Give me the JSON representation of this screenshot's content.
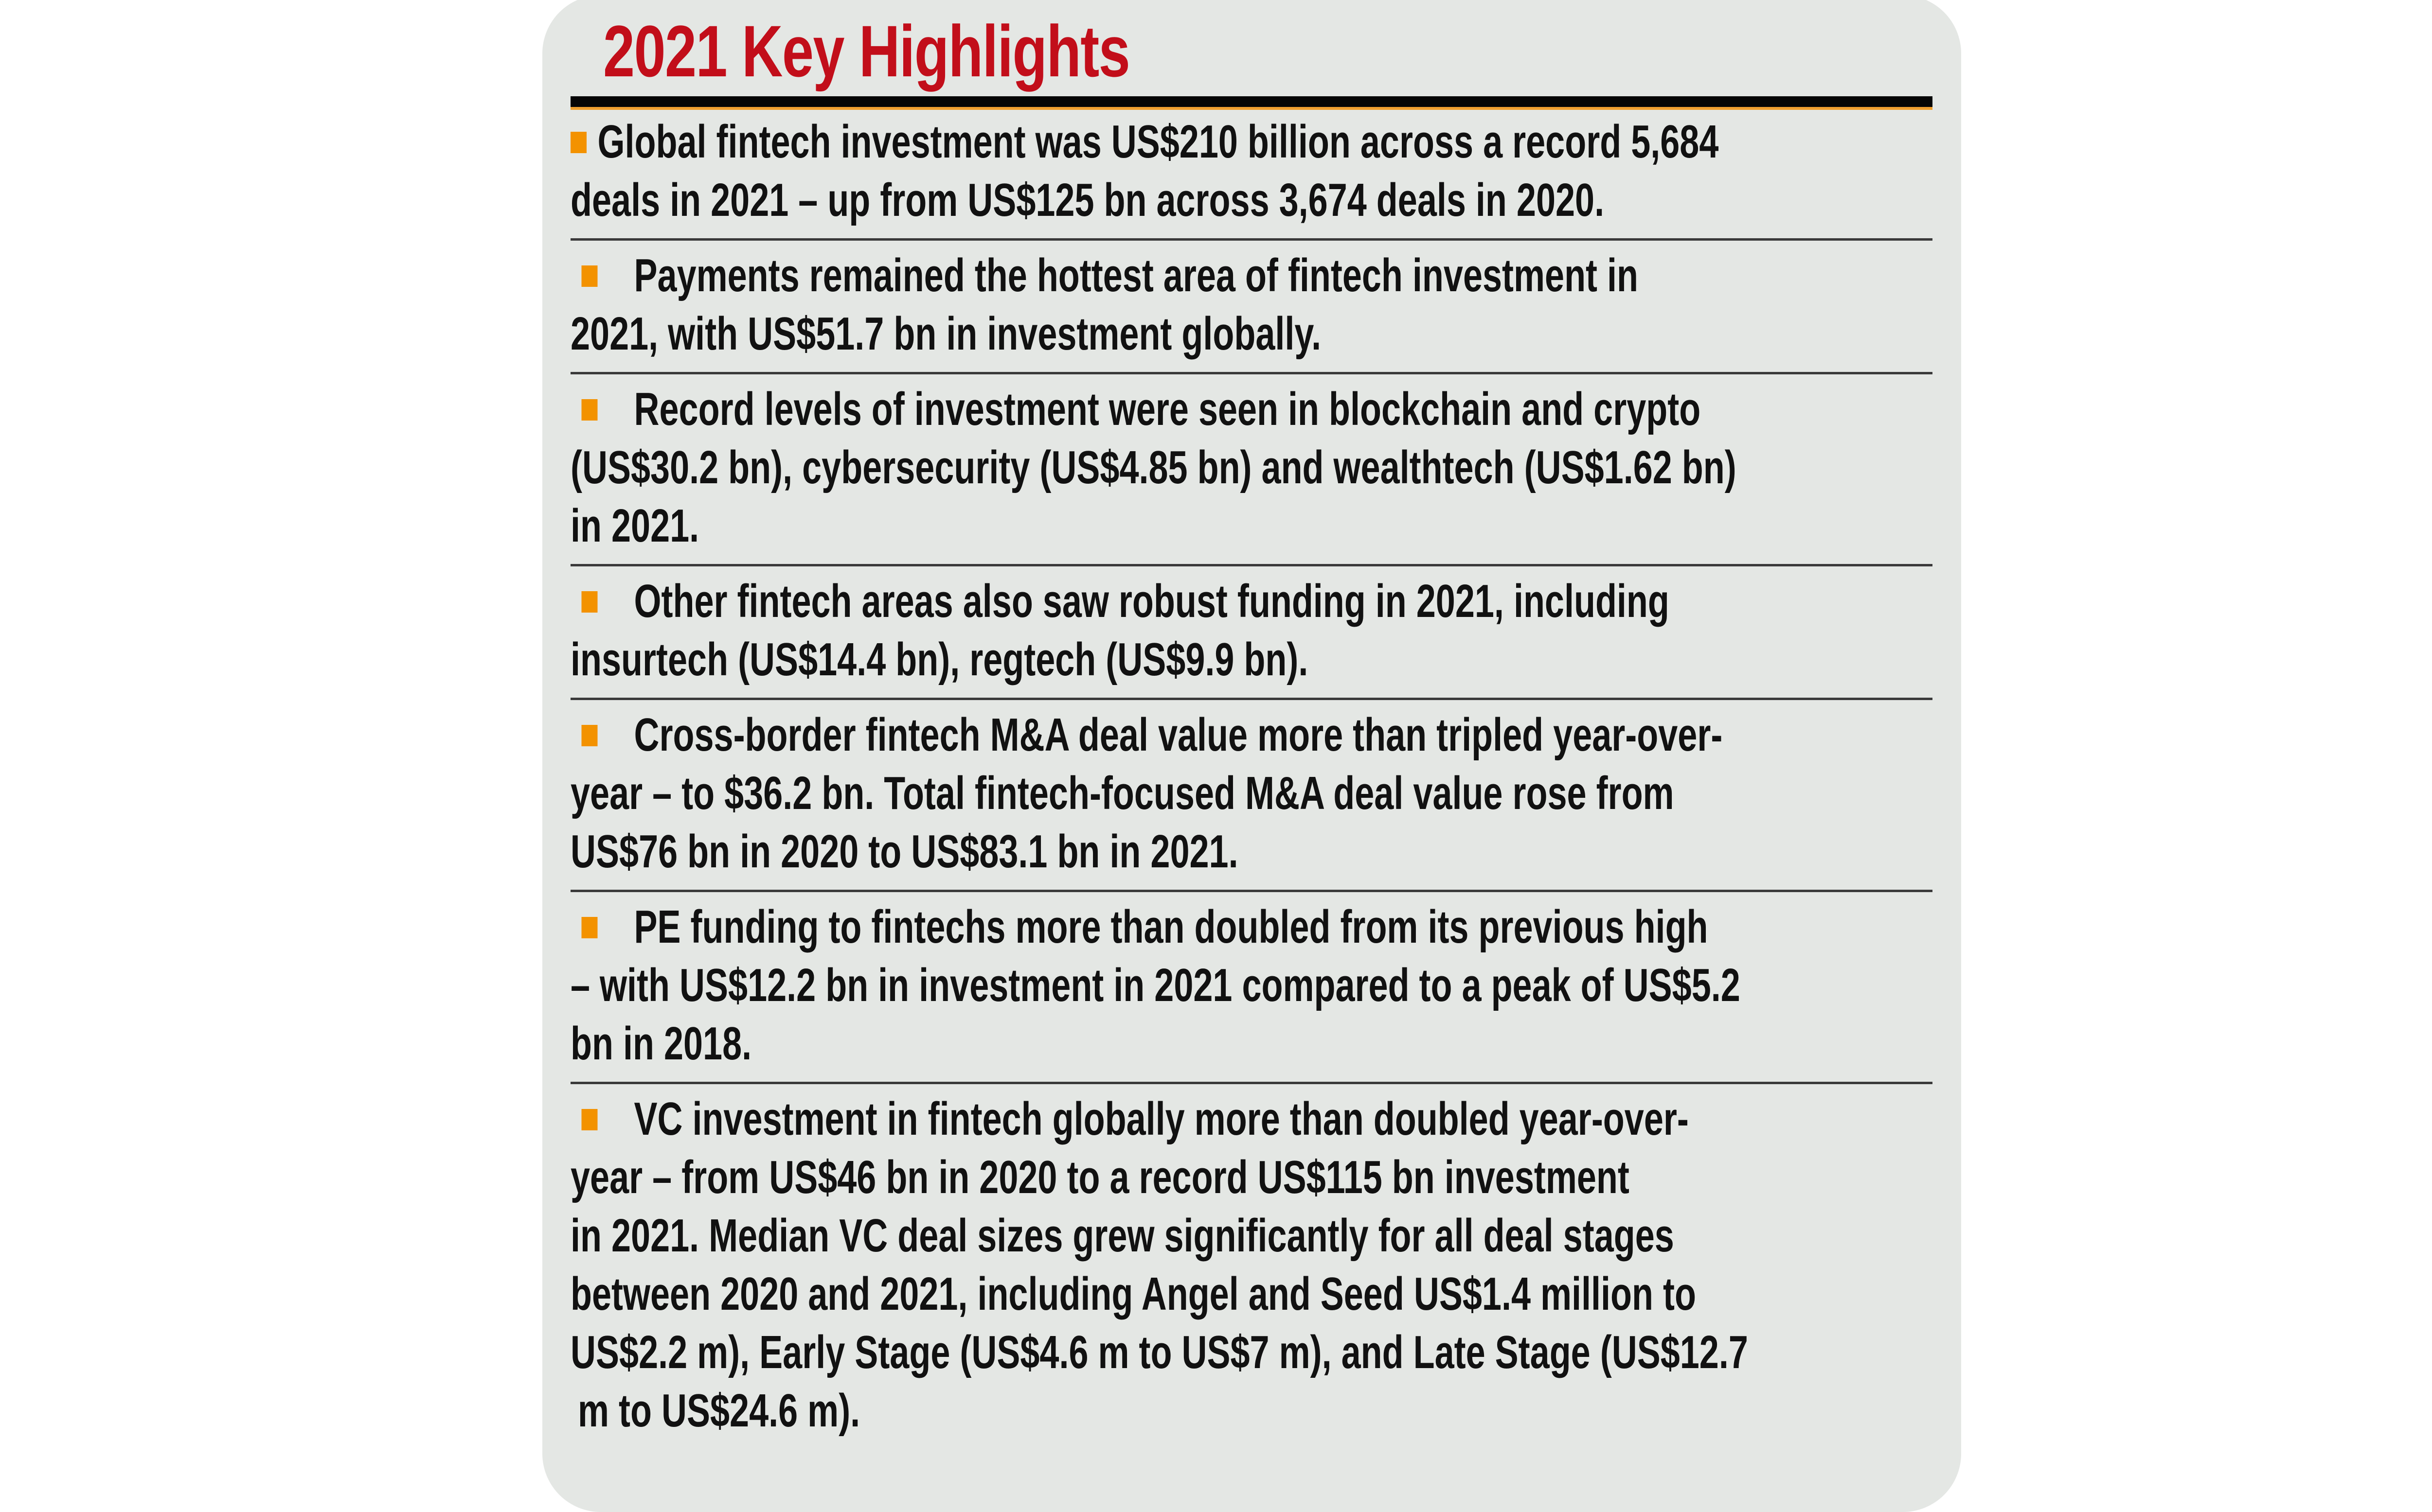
{
  "title": "2021 Key Highlights",
  "colors": {
    "title": "#c20e1a",
    "bullet": "#f39200",
    "panel": "#e4e7e4"
  },
  "items": [
    {
      "lines": [
        "Global fintech investment was US$210 billion across a record 5,684",
        "deals in 2021 – up from US$125 bn across 3,674 deals in 2020."
      ]
    },
    {
      "lines": [
        "Payments remained the hottest area of fintech investment in",
        "2021, with US$51.7 bn in investment globally."
      ]
    },
    {
      "lines": [
        "Record levels of investment were seen in blockchain and crypto",
        "(US$30.2 bn), cybersecurity (US$4.85 bn) and wealthtech (US$1.62 bn)",
        "in 2021."
      ]
    },
    {
      "lines": [
        "Other fintech areas also saw robust funding in 2021, including",
        "insurtech (US$14.4 bn), regtech (US$9.9 bn)."
      ]
    },
    {
      "lines": [
        "Cross-border fintech M&A deal value more than tripled year-over-",
        "year – to $36.2 bn. Total fintech-focused M&A deal value rose from",
        "US$76 bn in 2020 to US$83.1 bn in 2021."
      ]
    },
    {
      "lines": [
        "PE funding to fintechs more than doubled from its previous high",
        "– with US$12.2 bn in investment in 2021 compared to a peak of US$5.2",
        "bn in 2018."
      ]
    },
    {
      "lines": [
        "VC investment in fintech globally more than doubled year-over-",
        "year – from US$46 bn in 2020 to a record US$115 bn investment",
        "in 2021. Median VC deal sizes grew significantly for all deal stages",
        "between 2020 and 2021, including Angel and Seed US$1.4 million to",
        "US$2.2 m), Early Stage (US$4.6 m to US$7 m), and Late Stage (US$12.7",
        "m to US$24.6 m)."
      ]
    }
  ]
}
